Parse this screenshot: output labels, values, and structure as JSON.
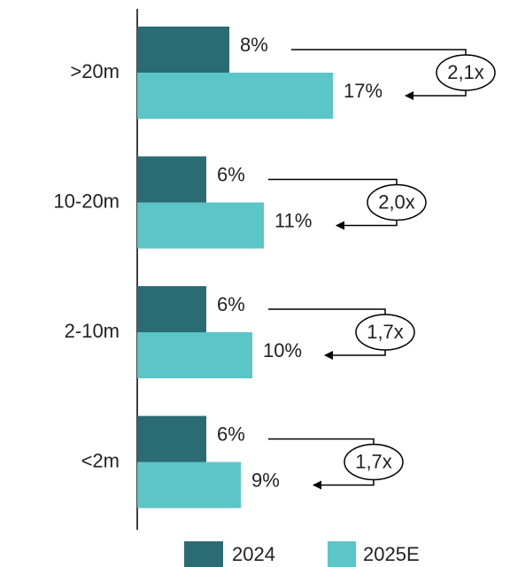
{
  "chart_data": {
    "type": "barh",
    "categories": [
      ">20m",
      "10-20m",
      "2-10m",
      "<2m"
    ],
    "series": [
      {
        "name": "2024",
        "color": "#2a6b74",
        "values": [
          8,
          6,
          6,
          6
        ],
        "value_labels": [
          "8%",
          "6%",
          "6%",
          "6%"
        ]
      },
      {
        "name": "2025E",
        "color": "#5bc5c8",
        "values": [
          17,
          11,
          10,
          9
        ],
        "value_labels": [
          "17%",
          "11%",
          "10%",
          "9%"
        ]
      }
    ],
    "annotations": [
      "2,1x",
      "2,0x",
      "1,7x",
      "1,7x"
    ]
  }
}
